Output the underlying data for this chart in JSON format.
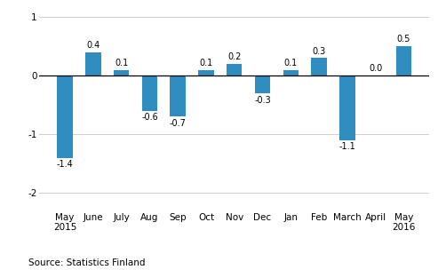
{
  "categories": [
    "May\n2015",
    "June",
    "July",
    "Aug",
    "Sep",
    "Oct",
    "Nov",
    "Dec",
    "Jan",
    "Feb",
    "March",
    "April",
    "May\n2016"
  ],
  "values": [
    -1.4,
    0.4,
    0.1,
    -0.6,
    -0.7,
    0.1,
    0.2,
    -0.3,
    0.1,
    0.3,
    -1.1,
    0.0,
    0.5
  ],
  "bar_color": "#2f8dc0",
  "ylim": [
    -2.3,
    1.15
  ],
  "yticks": [
    -2,
    -1,
    0,
    1
  ],
  "source_text": "Source: Statistics Finland",
  "label_fontsize": 7.0,
  "tick_fontsize": 7.5,
  "source_fontsize": 7.5,
  "bar_width": 0.55
}
